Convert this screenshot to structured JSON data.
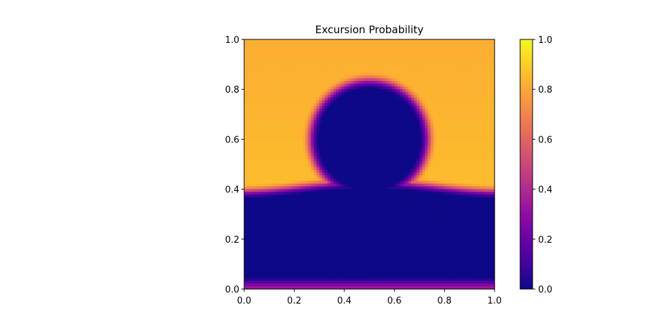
{
  "chart_data": {
    "type": "heatmap",
    "title": "Excursion Probability",
    "xlabel": "",
    "ylabel": "",
    "xlim": [
      0,
      1
    ],
    "ylim": [
      0,
      1
    ],
    "x_ticks": [
      "0.0",
      "0.2",
      "0.4",
      "0.6",
      "0.8",
      "1.0"
    ],
    "y_ticks": [
      "0.0",
      "0.2",
      "0.4",
      "0.6",
      "0.8",
      "1.0"
    ],
    "colormap": "plasma",
    "colorbar": {
      "range": [
        0,
        1
      ],
      "ticks": [
        "0.0",
        "0.2",
        "0.4",
        "0.6",
        "0.8",
        "1.0"
      ]
    },
    "colormap_stops": [
      "#0d0887",
      "#41049d",
      "#6a00a8",
      "#8f0da4",
      "#b12a90",
      "#cc4778",
      "#e16462",
      "#f2844b",
      "#fca636",
      "#fcce25",
      "#f0f921"
    ],
    "field_description": {
      "background_value": 0.88,
      "low_regions": [
        {
          "shape": "disk",
          "center": [
            0.5,
            0.6
          ],
          "radius": 0.2,
          "value": 0.0
        },
        {
          "shape": "band",
          "y_range": [
            0.05,
            0.38
          ],
          "value": 0.0
        }
      ],
      "bottom_edge_value": 0.35
    }
  }
}
